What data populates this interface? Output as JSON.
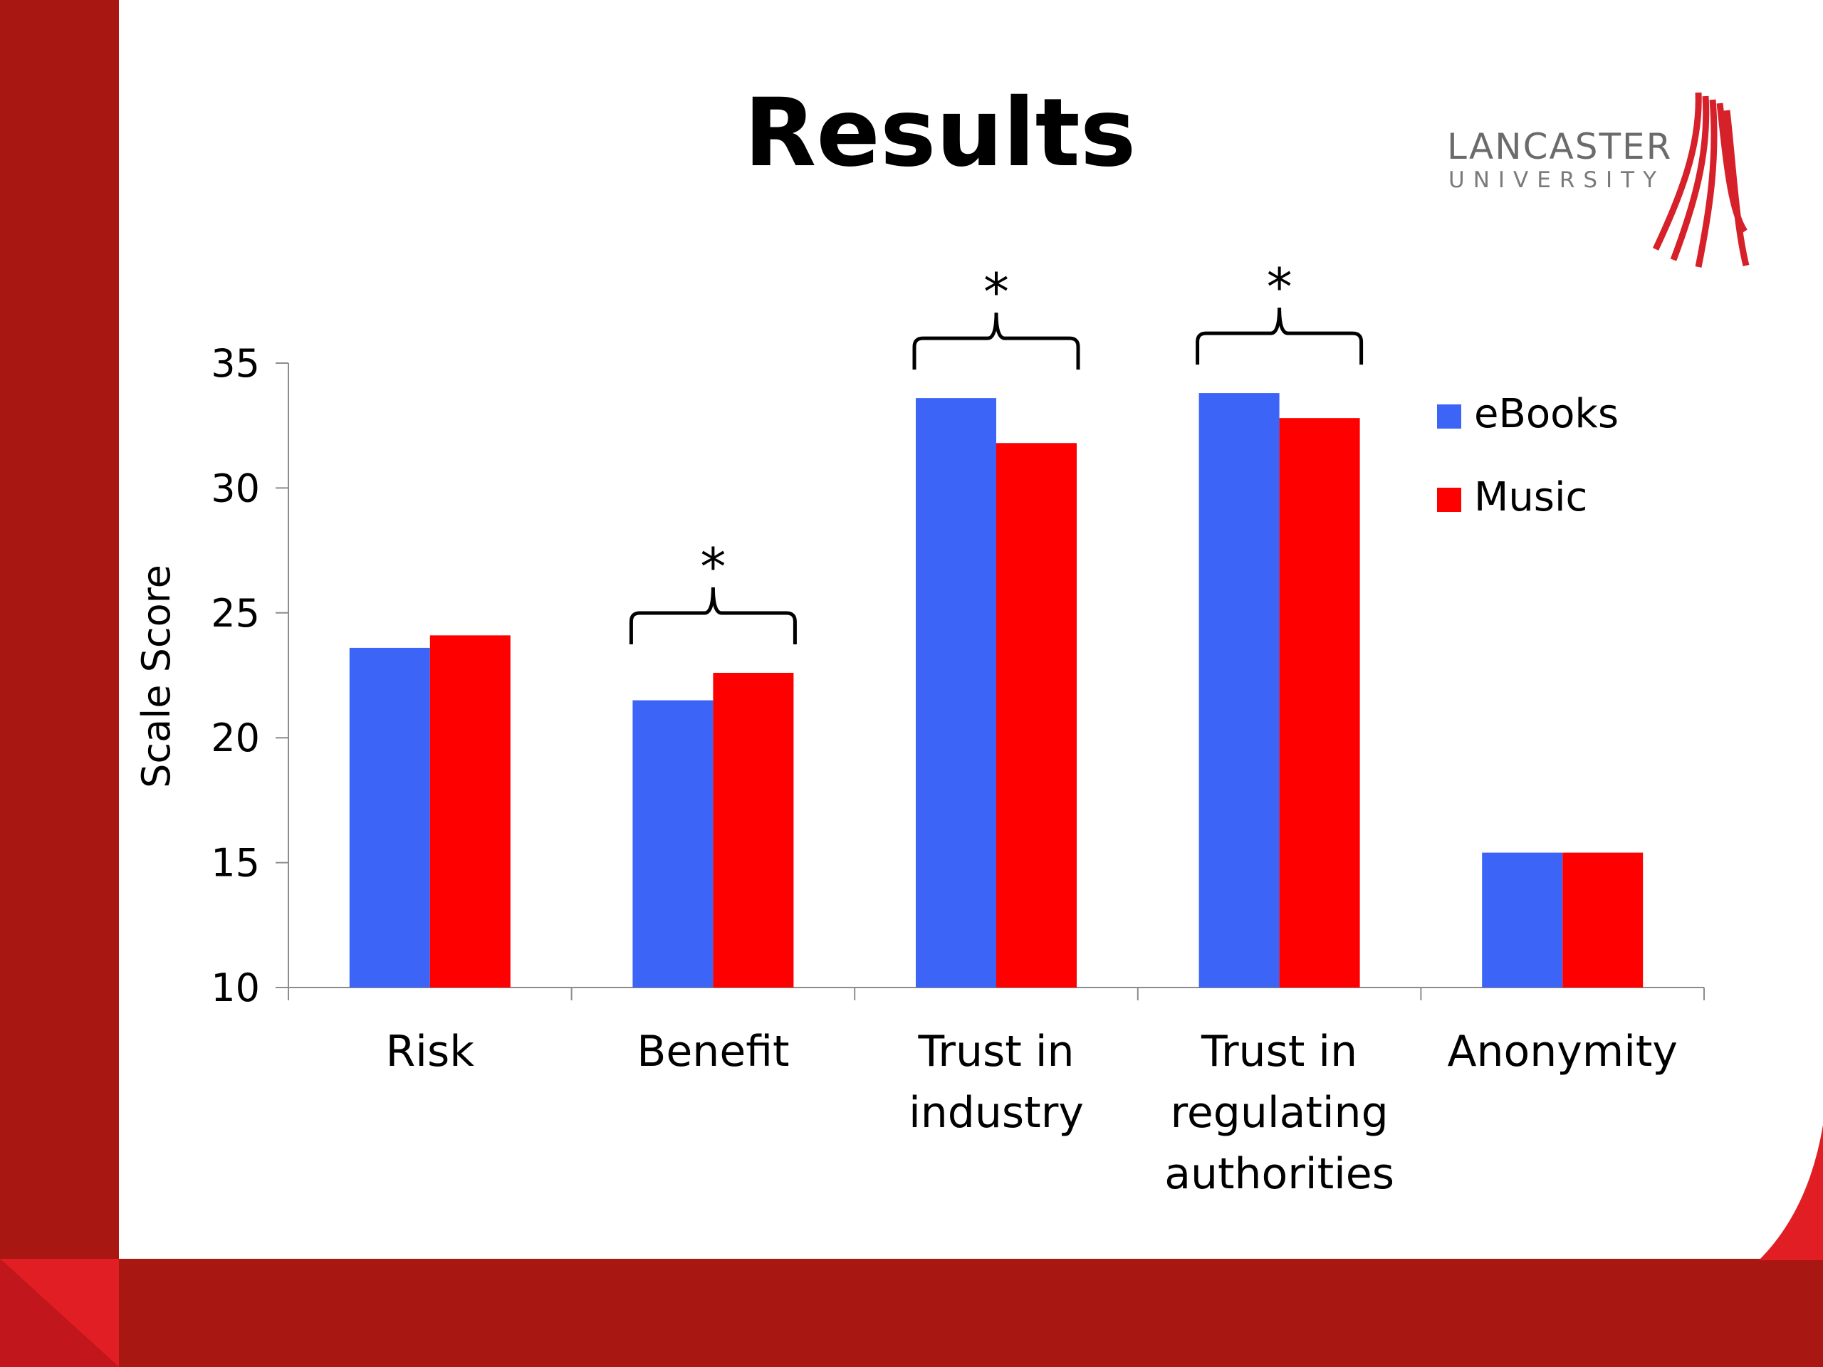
{
  "slide": {
    "title": "Results"
  },
  "logo": {
    "name": "LANCASTER",
    "sub": "UNIVERSITY"
  },
  "colors": {
    "band": "#A81712",
    "ebooks": "#3C64F6",
    "music": "#FF0000"
  },
  "chart_data": {
    "type": "bar",
    "ylabel": "Scale Score",
    "ylim": [
      10,
      35
    ],
    "yticks": [
      "10",
      "15",
      "20",
      "25",
      "30",
      "35"
    ],
    "categories": [
      "Risk",
      "Benefit",
      "Trust in industry",
      "Trust in regulating authorities",
      "Anonymity"
    ],
    "category_lines": [
      [
        "Risk"
      ],
      [
        "Benefit"
      ],
      [
        "Trust in",
        "industry"
      ],
      [
        "Trust in",
        "regulating",
        "authorities"
      ],
      [
        "Anonymity"
      ]
    ],
    "series": [
      {
        "name": "eBooks",
        "values": [
          23.6,
          21.5,
          33.6,
          33.8,
          15.4
        ]
      },
      {
        "name": "Music",
        "values": [
          24.1,
          22.6,
          31.8,
          32.8,
          15.4
        ]
      }
    ],
    "legend_position": "top-right",
    "grid": false,
    "significance": {
      "marker": "*",
      "categories": [
        1,
        2,
        3
      ]
    }
  }
}
